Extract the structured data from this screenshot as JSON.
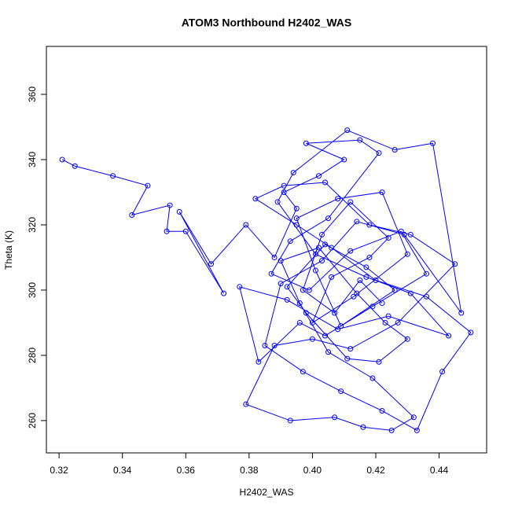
{
  "chart_data": {
    "type": "line",
    "title": "ATOM3 Northbound H2402_WAS",
    "xlabel": "H2402_WAS",
    "ylabel": "Theta (K)",
    "color": "#0000ff",
    "markers": true,
    "xlim": [
      0.316,
      0.455
    ],
    "ylim": [
      250.1,
      374.7
    ],
    "xticks": [
      0.32,
      0.34,
      0.36,
      0.38,
      {
        "value": 0.4,
        "label": "0.40"
      },
      0.42,
      0.44
    ],
    "yticks": [
      260,
      280,
      300,
      320,
      340,
      360
    ],
    "x": [
      0.321,
      0.325,
      0.337,
      0.348,
      0.343,
      0.355,
      0.354,
      0.36,
      0.372,
      0.358,
      0.368,
      0.379,
      0.388,
      0.395,
      0.391,
      0.402,
      0.41,
      0.398,
      0.415,
      0.421,
      0.405,
      0.393,
      0.387,
      0.399,
      0.412,
      0.428,
      0.436,
      0.419,
      0.404,
      0.396,
      0.383,
      0.377,
      0.392,
      0.408,
      0.424,
      0.443,
      0.431,
      0.417,
      0.401,
      0.389,
      0.394,
      0.411,
      0.426,
      0.438,
      0.447,
      0.429,
      0.414,
      0.403,
      0.39,
      0.385,
      0.397,
      0.409,
      0.422,
      0.433,
      0.441,
      0.45,
      0.436,
      0.42,
      0.406,
      0.395,
      0.382,
      0.391,
      0.404,
      0.418,
      0.431,
      0.445,
      0.427,
      0.412,
      0.4,
      0.388,
      0.379,
      0.393,
      0.407,
      0.416,
      0.425,
      0.432,
      0.419,
      0.405,
      0.396,
      0.39,
      0.402,
      0.414,
      0.423,
      0.43,
      0.421,
      0.411,
      0.398,
      0.392,
      0.404,
      0.417,
      0.426,
      0.409,
      0.401,
      0.395,
      0.408,
      0.422,
      0.43,
      0.413,
      0.4,
      0.406,
      0.418,
      0.424,
      0.412,
      0.403,
      0.397,
      0.407,
      0.415,
      0.422
    ],
    "values": [
      340,
      338,
      335,
      332,
      323,
      326,
      318,
      318,
      299,
      324,
      308,
      320,
      310,
      325,
      330,
      335,
      340,
      345,
      346,
      342,
      322,
      315,
      305,
      300,
      312,
      318,
      305,
      295,
      286,
      290,
      278,
      301,
      297,
      288,
      292,
      286,
      299,
      304,
      311,
      327,
      336,
      349,
      343,
      345,
      293,
      317,
      321,
      309,
      302,
      283,
      275,
      269,
      263,
      257,
      275,
      287,
      298,
      303,
      313,
      320,
      328,
      332,
      333,
      320,
      317,
      308,
      290,
      282,
      285,
      283,
      265,
      260,
      261,
      258,
      257,
      261,
      273,
      281,
      296,
      309,
      313,
      299,
      290,
      285,
      278,
      279,
      293,
      301,
      314,
      307,
      300,
      289,
      306,
      322,
      328,
      330,
      311,
      298,
      290,
      304,
      310,
      316,
      327,
      317,
      300,
      293,
      303,
      296
    ]
  }
}
